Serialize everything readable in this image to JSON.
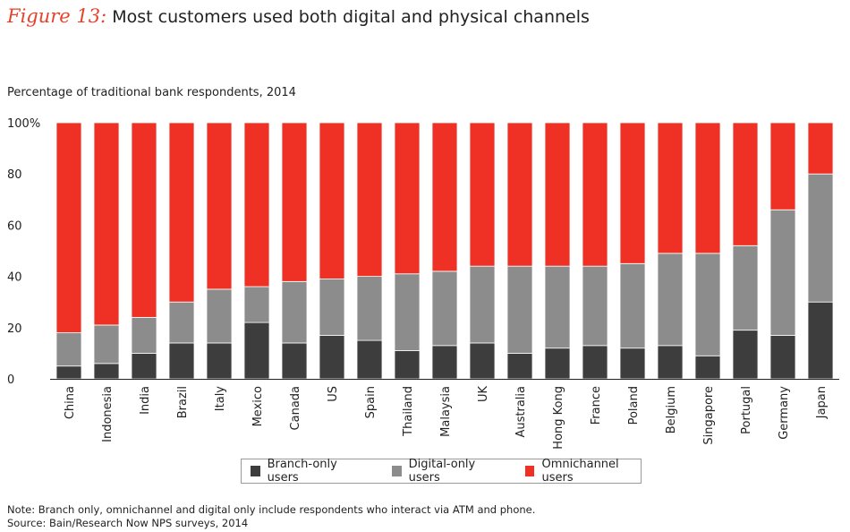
{
  "title": {
    "figure_label": "Figure 13:",
    "text": "Most customers used both digital and physical channels"
  },
  "subtitle": "Percentage of traditional bank respondents, 2014",
  "notes": {
    "note": "Note: Branch only, omnichannel and digital only include respondents who interact via ATM and phone.",
    "source": "Source: Bain/Research Now NPS surveys, 2014"
  },
  "colors": {
    "branch": "#3d3d3d",
    "digital": "#8c8c8c",
    "omni": "#ee3124"
  },
  "chart_data": {
    "type": "bar",
    "stacked": true,
    "title": "Most customers used both digital and physical channels",
    "ylabel": "Percentage of traditional bank respondents, 2014",
    "ylim": [
      0,
      100
    ],
    "yticks": [
      "0",
      "20",
      "40",
      "60",
      "80",
      "100%"
    ],
    "categories": [
      "China",
      "Indonesia",
      "India",
      "Brazil",
      "Italy",
      "Mexico",
      "Canada",
      "US",
      "Spain",
      "Thailand",
      "Malaysia",
      "UK",
      "Australia",
      "Hong Kong",
      "France",
      "Poland",
      "Belgium",
      "Singapore",
      "Portugal",
      "Germany",
      "Japan"
    ],
    "series": [
      {
        "name": "Branch-only users",
        "values": [
          5,
          6,
          10,
          14,
          14,
          22,
          14,
          17,
          15,
          11,
          13,
          14,
          10,
          12,
          13,
          12,
          13,
          9,
          19,
          17,
          30
        ]
      },
      {
        "name": "Digital-only users",
        "values": [
          13,
          15,
          14,
          16,
          21,
          14,
          24,
          22,
          25,
          30,
          29,
          30,
          34,
          32,
          31,
          33,
          36,
          40,
          33,
          49,
          50
        ]
      },
      {
        "name": "Omnichannel users",
        "values": [
          82,
          79,
          76,
          70,
          65,
          64,
          62,
          61,
          60,
          59,
          58,
          56,
          56,
          56,
          56,
          55,
          51,
          51,
          48,
          34,
          20
        ]
      }
    ],
    "legend": "bottom"
  }
}
